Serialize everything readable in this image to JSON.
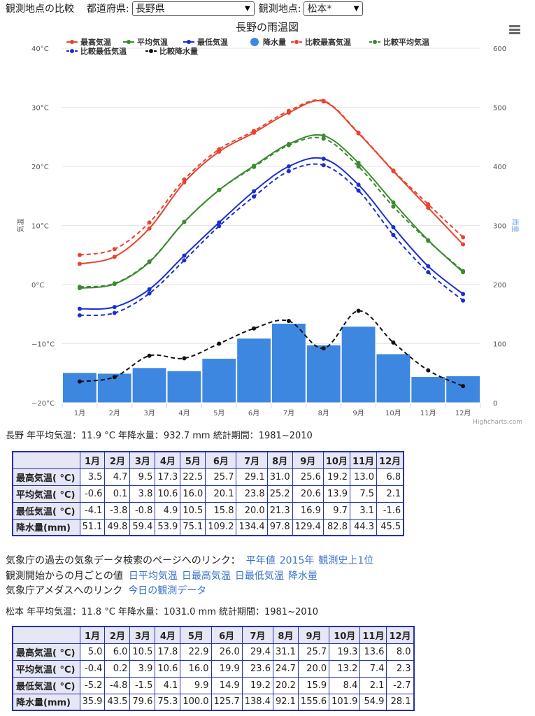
{
  "topbar": {
    "compare_label": "観測地点の比較",
    "pref_label": "都道府県:",
    "pref_value": "長野県",
    "station_label": "観測地点:",
    "station_value": "松本*"
  },
  "chart_data": {
    "type": "line",
    "title": "長野の雨温図",
    "categories": [
      "1月",
      "2月",
      "3月",
      "4月",
      "5月",
      "6月",
      "7月",
      "8月",
      "9月",
      "10月",
      "11月",
      "12月"
    ],
    "y_left": {
      "label": "気温",
      "min": -20,
      "max": 40,
      "ticks": [
        "−20°C",
        "−10°C",
        "0°C",
        "10°C",
        "20°C",
        "30°C",
        "40°C"
      ]
    },
    "y_right": {
      "label": "雨量",
      "min": 0,
      "max": 600,
      "ticks": [
        "0",
        "100",
        "200",
        "300",
        "400",
        "500",
        "600"
      ]
    },
    "series": [
      {
        "name": "最高気温",
        "kind": "line",
        "axis": "left",
        "dashed": false,
        "color": "#e8432e",
        "values": [
          3.5,
          4.7,
          9.5,
          17.3,
          22.5,
          25.7,
          29.1,
          31.0,
          25.6,
          19.2,
          13.0,
          6.8
        ]
      },
      {
        "name": "平均気温",
        "kind": "line",
        "axis": "left",
        "dashed": false,
        "color": "#3a8a2e",
        "values": [
          -0.6,
          0.1,
          3.8,
          10.6,
          16.0,
          20.1,
          23.8,
          25.2,
          20.6,
          13.9,
          7.5,
          2.1
        ]
      },
      {
        "name": "最低気温",
        "kind": "line",
        "axis": "left",
        "dashed": false,
        "color": "#1a2ed0",
        "values": [
          -4.1,
          -3.8,
          -0.8,
          4.9,
          10.5,
          15.8,
          20.0,
          21.3,
          16.9,
          9.7,
          3.1,
          -1.6
        ]
      },
      {
        "name": "降水量",
        "kind": "bar",
        "axis": "right",
        "color": "#3d87e0",
        "values": [
          51.1,
          49.8,
          59.4,
          53.9,
          75.1,
          109.2,
          134.4,
          97.8,
          129.4,
          82.8,
          44.3,
          45.5
        ]
      },
      {
        "name": "比較最高気温",
        "kind": "line",
        "axis": "left",
        "dashed": true,
        "color": "#e8432e",
        "values": [
          5.0,
          6.0,
          10.5,
          17.8,
          22.9,
          26.0,
          29.4,
          31.1,
          25.7,
          19.3,
          13.6,
          8.0
        ]
      },
      {
        "name": "比較平均気温",
        "kind": "line",
        "axis": "left",
        "dashed": true,
        "color": "#3a8a2e",
        "values": [
          -0.4,
          0.2,
          3.9,
          10.6,
          16.0,
          19.9,
          23.6,
          24.7,
          20.0,
          13.2,
          7.4,
          2.3
        ]
      },
      {
        "name": "比較最低気温",
        "kind": "line",
        "axis": "left",
        "dashed": true,
        "color": "#1a2ed0",
        "values": [
          -5.2,
          -4.8,
          -1.5,
          4.1,
          9.9,
          14.9,
          19.2,
          20.2,
          15.9,
          8.4,
          2.1,
          -2.7
        ]
      },
      {
        "name": "比較降水量",
        "kind": "line",
        "axis": "right",
        "dashed": true,
        "color": "#111111",
        "values": [
          35.9,
          43.5,
          79.6,
          75.3,
          100.0,
          125.7,
          138.4,
          92.1,
          155.6,
          101.9,
          54.9,
          28.1
        ]
      }
    ],
    "legend_position": "top",
    "grid": true,
    "credit": "Highcharts.com"
  },
  "nagano": {
    "summary": "長野 年平均気温：11.9 °C  年降水量：932.7 mm  統計期間：1981~2010",
    "table": {
      "months": [
        "1月",
        "2月",
        "3月",
        "4月",
        "5月",
        "6月",
        "7月",
        "8月",
        "9月",
        "10月",
        "11月",
        "12月"
      ],
      "rows": [
        {
          "label": "最高気温( °C)",
          "cells": [
            "3.5",
            "4.7",
            "9.5",
            "17.3",
            "22.5",
            "25.7",
            "29.1",
            "31.0",
            "25.6",
            "19.2",
            "13.0",
            "6.8"
          ]
        },
        {
          "label": "平均気温( °C)",
          "cells": [
            "-0.6",
            "0.1",
            "3.8",
            "10.6",
            "16.0",
            "20.1",
            "23.8",
            "25.2",
            "20.6",
            "13.9",
            "7.5",
            "2.1"
          ]
        },
        {
          "label": "最低気温( °C)",
          "cells": [
            "-4.1",
            "-3.8",
            "-0.8",
            "4.9",
            "10.5",
            "15.8",
            "20.0",
            "21.3",
            "16.9",
            "9.7",
            "3.1",
            "-1.6"
          ]
        },
        {
          "label": "降水量(mm)",
          "cells": [
            "51.1",
            "49.8",
            "59.4",
            "53.9",
            "75.1",
            "109.2",
            "134.4",
            "97.8",
            "129.4",
            "82.8",
            "44.3",
            "45.5"
          ]
        }
      ]
    }
  },
  "links": {
    "line1_label": "気象庁の過去の気象データ検索のページへのリンク：",
    "line1_links": [
      "平年値",
      "2015年",
      "観測史上1位"
    ],
    "line2_label": "観測開始からの月ごとの値",
    "line2_links": [
      "日平均気温",
      "日最高気温",
      "日最低気温",
      "降水量"
    ],
    "line3_label": "気象庁アメダスへのリンク",
    "line3_links": [
      "今日の観測データ"
    ]
  },
  "matsumoto": {
    "summary": "松本 年平均気温：11.8 °C  年降水量：1031.0 mm  統計期間：1981~2010",
    "table": {
      "months": [
        "1月",
        "2月",
        "3月",
        "4月",
        "5月",
        "6月",
        "7月",
        "8月",
        "9月",
        "10月",
        "11月",
        "12月"
      ],
      "rows": [
        {
          "label": "最高気温( °C)",
          "cells": [
            "5.0",
            "6.0",
            "10.5",
            "17.8",
            "22.9",
            "26.0",
            "29.4",
            "31.1",
            "25.7",
            "19.3",
            "13.6",
            "8.0"
          ]
        },
        {
          "label": "平均気温( °C)",
          "cells": [
            "-0.4",
            "0.2",
            "3.9",
            "10.6",
            "16.0",
            "19.9",
            "23.6",
            "24.7",
            "20.0",
            "13.2",
            "7.4",
            "2.3"
          ]
        },
        {
          "label": "最低気温( °C)",
          "cells": [
            "-5.2",
            "-4.8",
            "-1.5",
            "4.1",
            "9.9",
            "14.9",
            "19.2",
            "20.2",
            "15.9",
            "8.4",
            "2.1",
            "-2.7"
          ]
        },
        {
          "label": "降水量(mm)",
          "cells": [
            "35.9",
            "43.5",
            "79.6",
            "75.3",
            "100.0",
            "125.7",
            "138.4",
            "92.1",
            "155.6",
            "101.9",
            "54.9",
            "28.1"
          ]
        }
      ]
    }
  }
}
